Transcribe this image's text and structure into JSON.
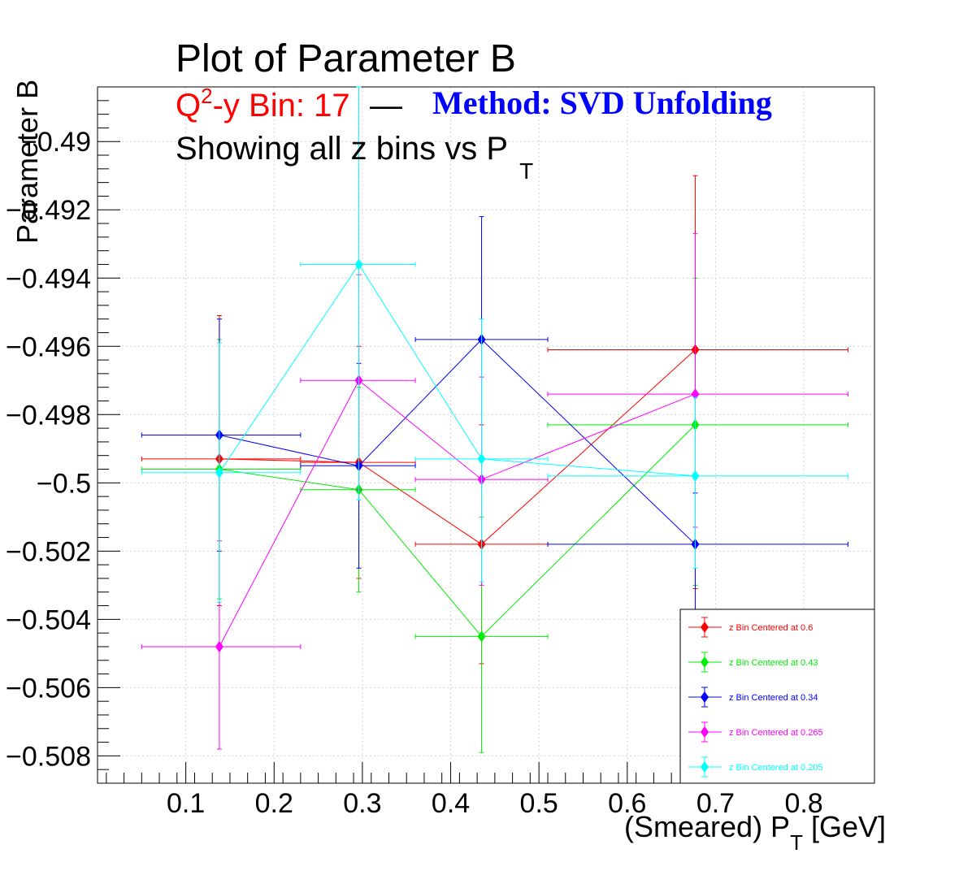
{
  "chart_data": {
    "type": "scatter",
    "title": "Plot of Parameter B",
    "subtitle": {
      "bin_prefix": "Q",
      "bin_sup": "2",
      "bin_rest": "-y Bin: 17",
      "dash": "—",
      "method": "Method: SVD Unfolding",
      "line3_main": "Showing all z bins vs P",
      "line3_sub": "T"
    },
    "xlabel": {
      "main": "(Smeared) P",
      "sub": "T",
      "rest": " [GeV]"
    },
    "ylabel": "Parameter B",
    "xlim": [
      0.0,
      0.88
    ],
    "ylim": [
      -0.5088,
      -0.4884
    ],
    "grid": true,
    "legend_position": "bottom-right",
    "x_ticks": [
      "0.1",
      "0.2",
      "0.3",
      "0.4",
      "0.5",
      "0.6",
      "0.7",
      "0.8"
    ],
    "x_tick_values": [
      0.1,
      0.2,
      0.3,
      0.4,
      0.5,
      0.6,
      0.7,
      0.8
    ],
    "y_ticks": [
      "−0.49",
      "−0.492",
      "−0.494",
      "−0.496",
      "−0.498",
      "−0.5",
      "−0.502",
      "−0.504",
      "−0.506",
      "−0.508"
    ],
    "y_tick_values": [
      -0.49,
      -0.492,
      -0.494,
      -0.496,
      -0.498,
      -0.5,
      -0.502,
      -0.504,
      -0.506,
      -0.508
    ],
    "series": [
      {
        "name": "z Bin Centered at 0.6",
        "color": "#ff0000",
        "points": [
          {
            "x": 0.138,
            "xlo": 0.05,
            "xhi": 0.23,
            "y": -0.4993,
            "ylo": -0.5036,
            "yhi": -0.4951
          },
          {
            "x": 0.296,
            "xlo": 0.23,
            "xhi": 0.36,
            "y": -0.4994,
            "ylo": -0.5028,
            "yhi": -0.496
          },
          {
            "x": 0.435,
            "xlo": 0.36,
            "xhi": 0.51,
            "y": -0.5018,
            "ylo": -0.5053,
            "yhi": -0.4983
          },
          {
            "x": 0.677,
            "xlo": 0.51,
            "xhi": 0.85,
            "y": -0.4961,
            "ylo": -0.5031,
            "yhi": -0.491
          }
        ]
      },
      {
        "name": "z Bin Centered at 0.43",
        "color": "#00ee00",
        "points": [
          {
            "x": 0.138,
            "xlo": 0.05,
            "xhi": 0.23,
            "y": -0.4996,
            "ylo": -0.5034,
            "yhi": -0.4958
          },
          {
            "x": 0.296,
            "xlo": 0.23,
            "xhi": 0.36,
            "y": -0.5002,
            "ylo": -0.5032,
            "yhi": -0.4972
          },
          {
            "x": 0.435,
            "xlo": 0.36,
            "xhi": 0.51,
            "y": -0.5045,
            "ylo": -0.5079,
            "yhi": -0.501
          },
          {
            "x": 0.677,
            "xlo": 0.51,
            "xhi": 0.85,
            "y": -0.4983,
            "ylo": -0.503,
            "yhi": -0.494
          }
        ]
      },
      {
        "name": "z Bin Centered at 0.34",
        "color": "#0000ff",
        "points": [
          {
            "x": 0.138,
            "xlo": 0.05,
            "xhi": 0.23,
            "y": -0.4986,
            "ylo": -0.502,
            "yhi": -0.4952
          },
          {
            "x": 0.296,
            "xlo": 0.23,
            "xhi": 0.36,
            "y": -0.4995,
            "ylo": -0.5025,
            "yhi": -0.4965
          },
          {
            "x": 0.435,
            "xlo": 0.36,
            "xhi": 0.51,
            "y": -0.4958,
            "ylo": -0.4993,
            "yhi": -0.4922
          },
          {
            "x": 0.677,
            "xlo": 0.51,
            "xhi": 0.85,
            "y": -0.5018,
            "ylo": -0.5038,
            "yhi": -0.5003
          }
        ]
      },
      {
        "name": "z Bin Centered at 0.265",
        "color": "#ff00ff",
        "points": [
          {
            "x": 0.138,
            "xlo": 0.05,
            "xhi": 0.23,
            "y": -0.5048,
            "ylo": -0.5078,
            "yhi": -0.5017
          },
          {
            "x": 0.296,
            "xlo": 0.23,
            "xhi": 0.36,
            "y": -0.497,
            "ylo": -0.5002,
            "yhi": -0.4939
          },
          {
            "x": 0.435,
            "xlo": 0.36,
            "xhi": 0.51,
            "y": -0.4999,
            "ylo": -0.503,
            "yhi": -0.4969
          },
          {
            "x": 0.677,
            "xlo": 0.51,
            "xhi": 0.85,
            "y": -0.4974,
            "ylo": -0.5013,
            "yhi": -0.4927
          }
        ]
      },
      {
        "name": "z Bin Centered at 0.205",
        "color": "#00ffff",
        "points": [
          {
            "x": 0.138,
            "xlo": 0.05,
            "xhi": 0.23,
            "y": -0.4997,
            "ylo": -0.5035,
            "yhi": -0.4959
          },
          {
            "x": 0.296,
            "xlo": 0.23,
            "xhi": 0.36,
            "y": -0.4936,
            "ylo": -0.5005,
            "yhi": -0.4884
          },
          {
            "x": 0.435,
            "xlo": 0.36,
            "xhi": 0.51,
            "y": -0.4993,
            "ylo": -0.5029,
            "yhi": -0.4952
          },
          {
            "x": 0.677,
            "xlo": 0.51,
            "xhi": 0.85,
            "y": -0.4998,
            "ylo": -0.5025,
            "yhi": -0.4975
          }
        ]
      }
    ]
  }
}
